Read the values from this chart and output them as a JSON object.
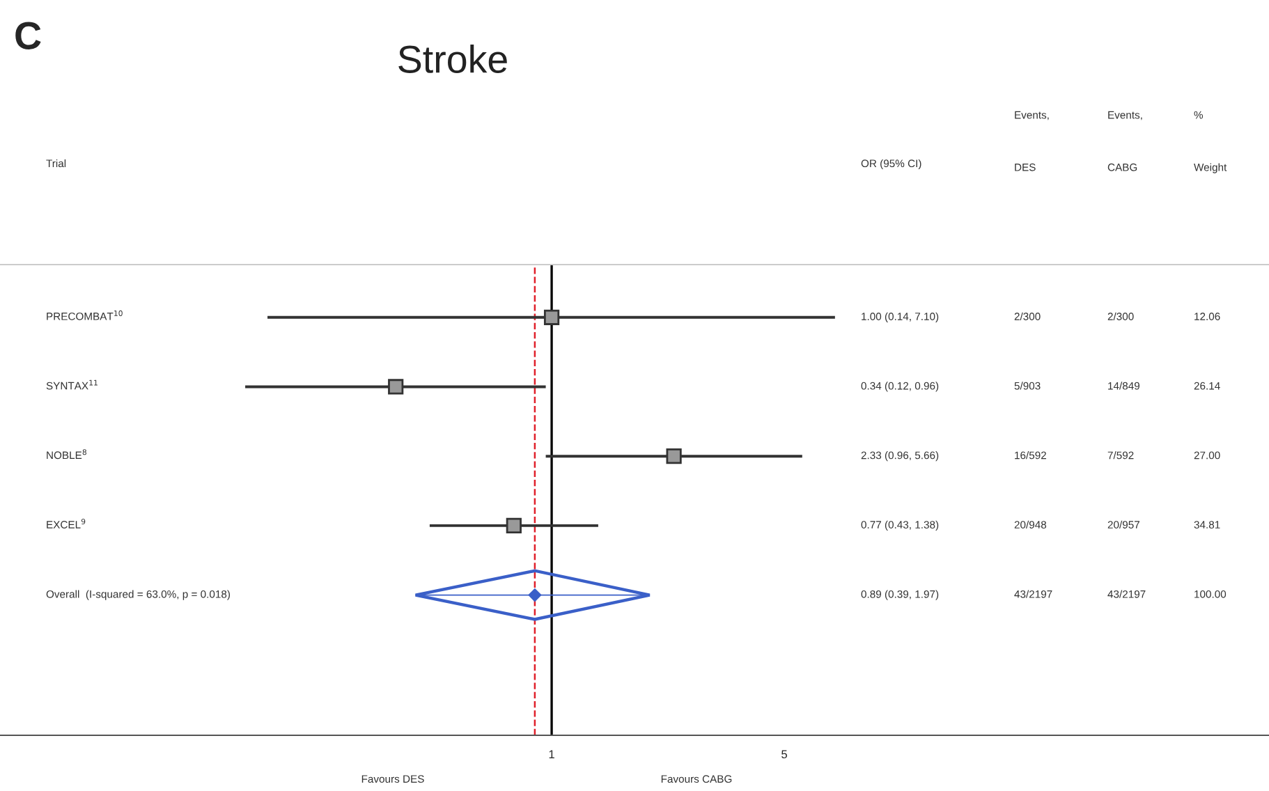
{
  "chart_data": {
    "type": "scatter",
    "title": "Stroke",
    "orientation": "horizontal",
    "log": "x",
    "categories": [
      "PRECOMBAT$^{10}$",
      "SYNTAX$^{11}$",
      "NOBLE$^{8}$",
      "EXCEL$^{9}$",
      "Overall  (I-squared = 63.0%, p = 0.018)"
    ],
    "series": [
      {
        "color": "#333333",
        "marker": "square",
        "values": [
          1.0,
          0.34,
          2.33,
          0.77,
          null
        ],
        "errors": [
          [
            0.14,
            7.1
          ],
          [
            0.12,
            0.96
          ],
          [
            0.96,
            5.66
          ],
          [
            0.43,
            1.38
          ],
          null
        ]
      },
      {
        "color": "#3a5fc8",
        "marker": "diamond",
        "values": [
          null,
          null,
          null,
          null,
          0.89
        ],
        "errors": [
          null,
          null,
          null,
          null,
          [
            0.39,
            1.97
          ]
        ]
      }
    ],
    "xlim": [
      0.022,
      143
    ],
    "xticks": [
      1,
      5
    ],
    "grid": false,
    "ref_lines": [
      {
        "axis": "x",
        "value": 1,
        "color": "#000000",
        "line_style": "solid"
      },
      {
        "axis": "x",
        "value": 0.89,
        "color": "#e0202a",
        "line_style": "dashed"
      }
    ],
    "annotations": [
      "C",
      "Trial",
      "OR (95% CI)",
      "Events,\nDES",
      "Events,\nCABG",
      "%\nWeight",
      "Favours DES",
      "Favours CABG",
      "1.00 (0.14, 7.10)",
      "2/300",
      "2/300",
      "12.06",
      "0.34 (0.12, 0.96)",
      "5/903",
      "14/849",
      "26.14",
      "2.33 (0.96, 5.66)",
      "16/592",
      "7/592",
      "27.00",
      "0.77 (0.43, 1.38)",
      "20/948",
      "20/957",
      "34.81",
      "0.89 (0.39, 1.97)",
      "43/2197",
      "43/2197",
      "100.00"
    ]
  }
}
